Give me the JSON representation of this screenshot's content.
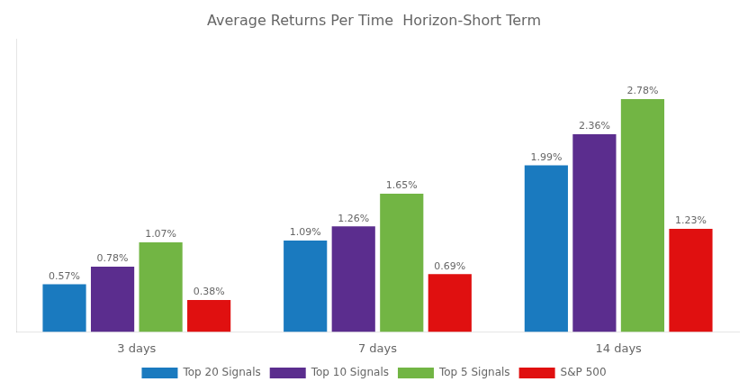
{
  "chart_data": {
    "type": "bar",
    "title": "Average Returns Per Time  Horizon-Short Term",
    "categories": [
      "3 days",
      "7 days",
      "14 days"
    ],
    "series": [
      {
        "name": "Top 20 Signals",
        "color": "#1a7abf",
        "values": [
          0.57,
          1.09,
          1.99
        ],
        "value_labels": [
          "0.57%",
          "1.09%",
          "1.99%"
        ]
      },
      {
        "name": "Top 10 Signals",
        "color": "#5b2d8e",
        "values": [
          0.78,
          1.26,
          2.36
        ],
        "value_labels": [
          "0.78%",
          "1.26%",
          "2.36%"
        ]
      },
      {
        "name": "Top 5 Signals",
        "color": "#72b544",
        "values": [
          1.07,
          1.65,
          2.78
        ],
        "value_labels": [
          "1.07%",
          "1.65%",
          "2.78%"
        ]
      },
      {
        "name": "S&P 500",
        "color": "#e01010",
        "values": [
          0.38,
          0.69,
          1.23
        ],
        "value_labels": [
          "0.38%",
          "0.69%",
          "1.23%"
        ]
      }
    ],
    "ylim": [
      0,
      3.5
    ],
    "yticks": [],
    "tick_labels": "x",
    "grid": false,
    "legend": "bottom",
    "data_labels": true
  }
}
